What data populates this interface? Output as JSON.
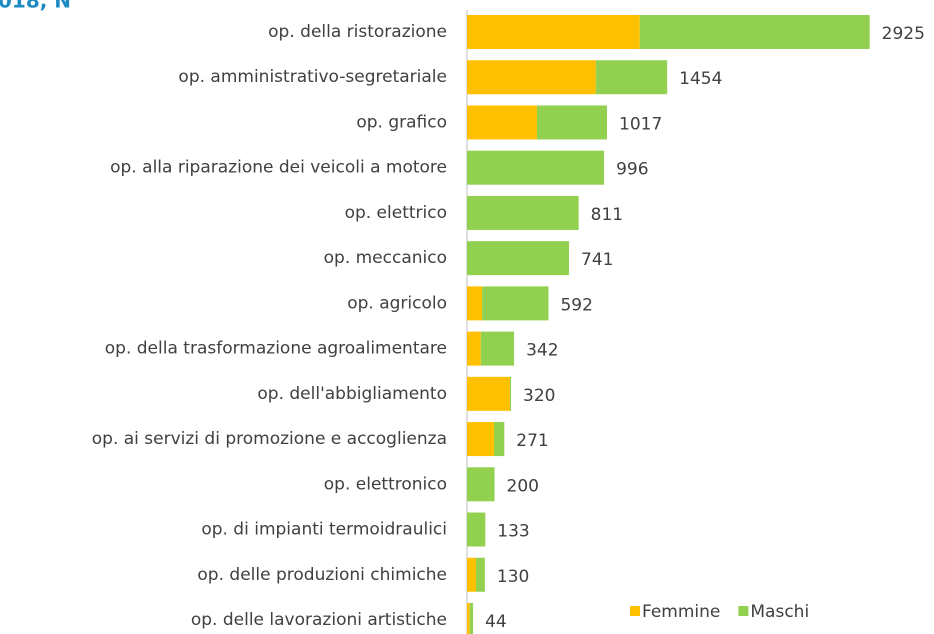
{
  "chart_data": {
    "type": "bar",
    "orientation": "horizontal",
    "stacked": true,
    "title": "018, N",
    "categories": [
      "op.  della ristorazione",
      "op.  amministrativo-segretariale",
      "op.  grafico",
      "op.  alla riparazione dei veicoli a motore",
      "op.  elettrico",
      "op.  meccanico",
      "op.  agricolo",
      "op.  della trasformazione agroalimentare",
      "op.  dell'abbigliamento",
      "op.  ai servizi di promozione e accoglienza",
      "op.  elettronico",
      "op.  di impianti termoidraulici",
      "op.  delle produzioni chimiche",
      "op.  delle lavorazioni artistiche"
    ],
    "series": [
      {
        "name": "Femmine",
        "color": "#FFC000",
        "values": [
          1255,
          936,
          508,
          0,
          0,
          0,
          110,
          100,
          312,
          196,
          0,
          0,
          65,
          20
        ]
      },
      {
        "name": "Maschi",
        "color": "#92D050",
        "values": [
          1670,
          518,
          509,
          996,
          811,
          741,
          482,
          242,
          8,
          75,
          200,
          133,
          65,
          24
        ]
      }
    ],
    "totals": [
      2925,
      1454,
      1017,
      996,
      811,
      741,
      592,
      342,
      320,
      271,
      200,
      133,
      130,
      44
    ],
    "xlim": [
      0,
      3000
    ],
    "legend": "bottom-right"
  }
}
